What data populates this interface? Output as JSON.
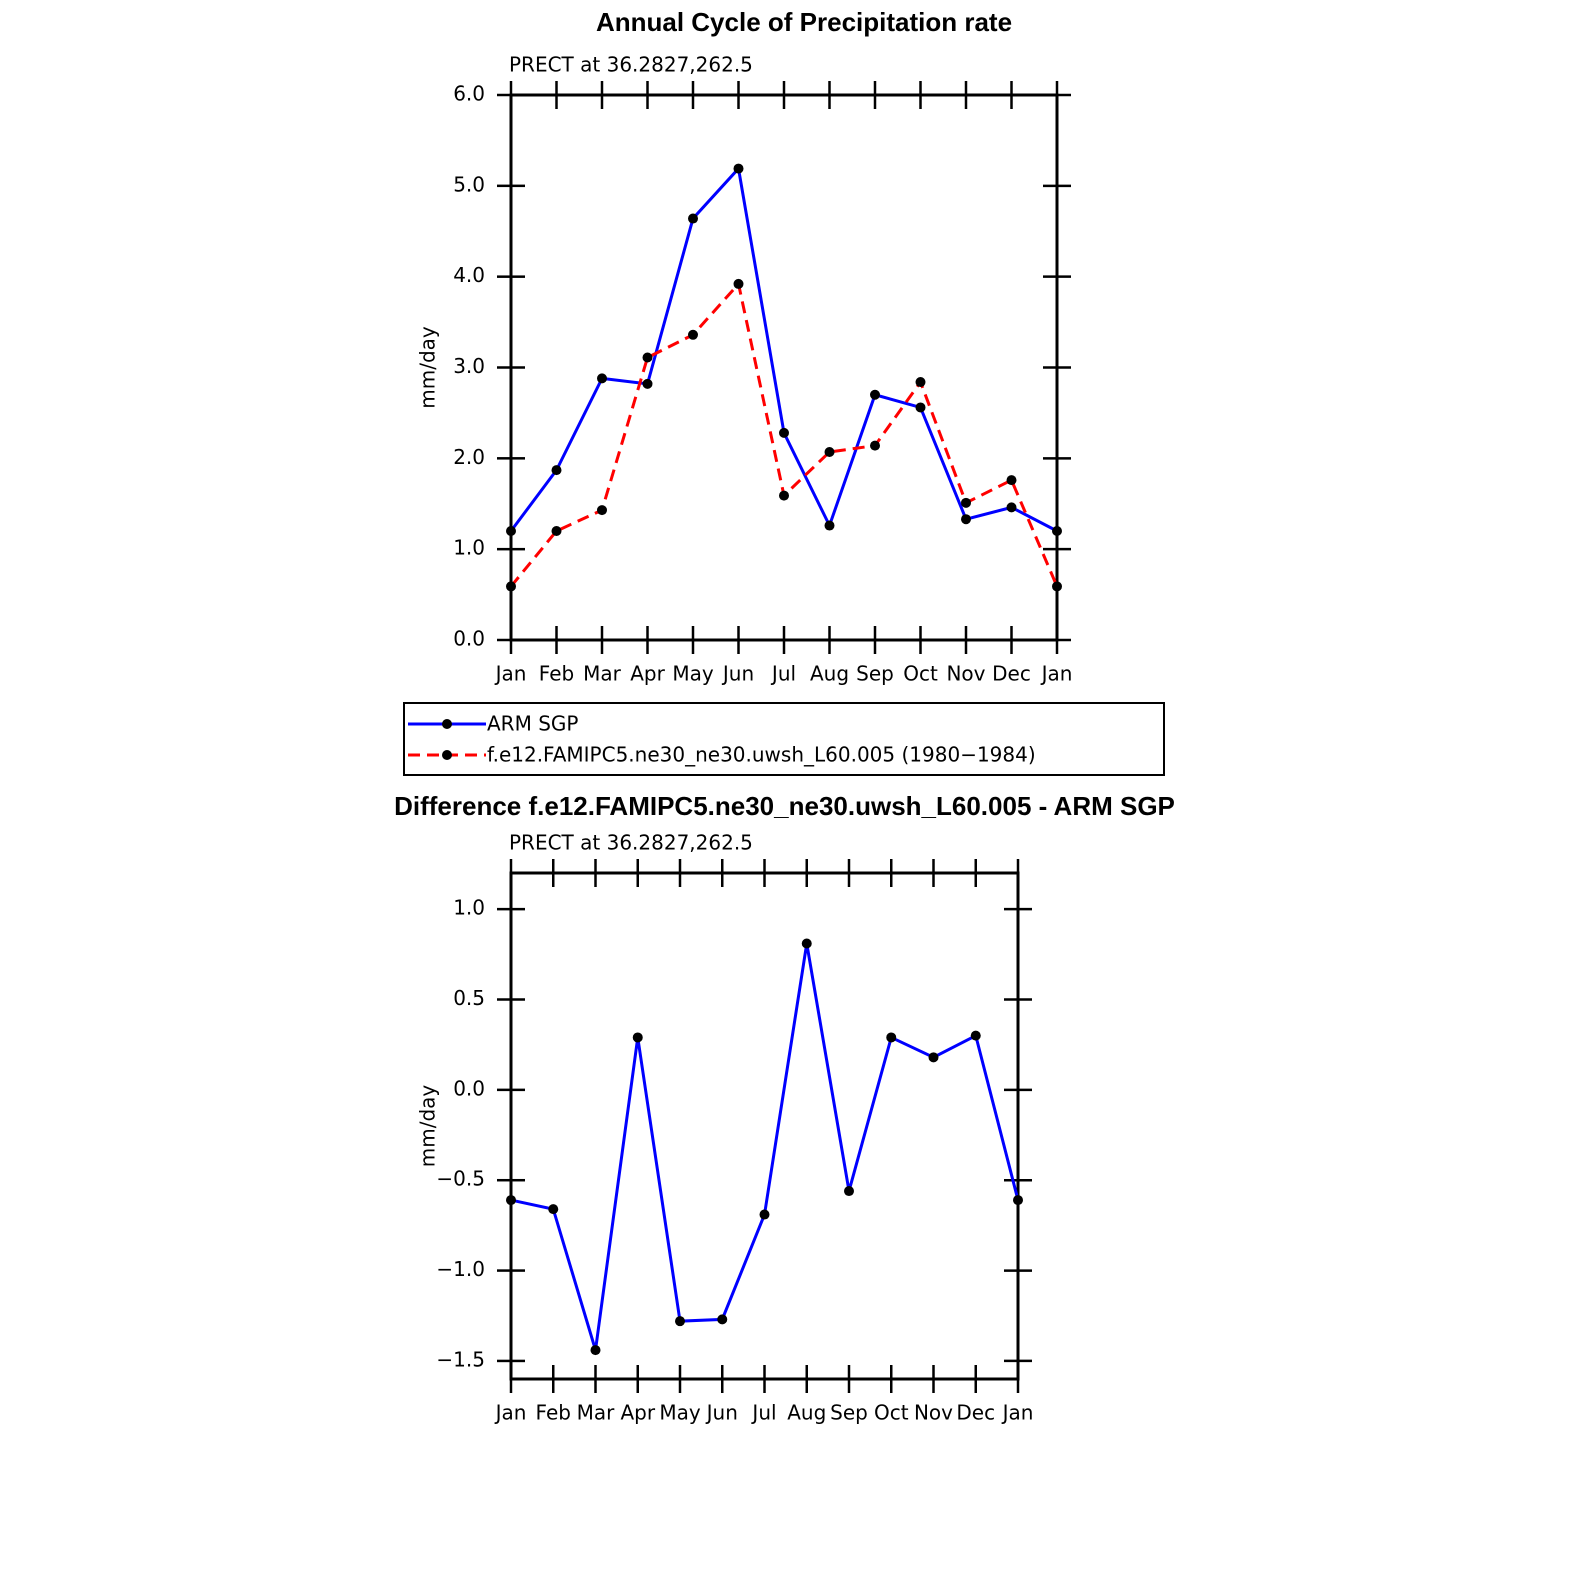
{
  "chart_data": [
    {
      "type": "line",
      "title": "Annual Cycle of Precipitation rate",
      "subtitle": "PRECT at 36.2827,262.5",
      "ylabel": "mm/day",
      "categories": [
        "Jan",
        "Feb",
        "Mar",
        "Apr",
        "May",
        "Jun",
        "Jul",
        "Aug",
        "Sep",
        "Oct",
        "Nov",
        "Dec",
        "Jan"
      ],
      "series": [
        {
          "name": "ARM SGP",
          "color": "#0000ff",
          "line_style": "solid",
          "values": [
            1.2,
            1.87,
            2.88,
            2.82,
            4.64,
            5.19,
            2.28,
            1.26,
            2.7,
            2.56,
            1.33,
            1.46,
            1.2
          ]
        },
        {
          "name": "f.e12.FAMIPC5.ne30_ne30.uwsh_L60.005 (1980−1984)",
          "color": "#ff0000",
          "line_style": "dashed",
          "values": [
            0.59,
            1.2,
            1.43,
            3.11,
            3.36,
            3.92,
            1.59,
            2.07,
            2.14,
            2.84,
            1.51,
            1.76,
            0.59
          ]
        }
      ],
      "ylim": [
        0,
        6
      ],
      "yticks": [
        {
          "value": 0,
          "label": "0.0"
        },
        {
          "value": 1,
          "label": "1.0"
        },
        {
          "value": 2,
          "label": "2.0"
        },
        {
          "value": 3,
          "label": "3.0"
        },
        {
          "value": 4,
          "label": "4.0"
        },
        {
          "value": 5,
          "label": "5.0"
        },
        {
          "value": 6,
          "label": "6.0"
        }
      ],
      "legend": "below",
      "marker_color": "#000000"
    },
    {
      "type": "line",
      "title": "Difference f.e12.FAMIPC5.ne30_ne30.uwsh_L60.005 - ARM SGP",
      "subtitle": "PRECT at 36.2827,262.5",
      "ylabel": "mm/day",
      "categories": [
        "Jan",
        "Feb",
        "Mar",
        "Apr",
        "May",
        "Jun",
        "Jul",
        "Aug",
        "Sep",
        "Oct",
        "Nov",
        "Dec",
        "Jan"
      ],
      "values": [
        -0.61,
        -0.66,
        -1.44,
        0.29,
        -1.28,
        -1.27,
        -0.69,
        0.81,
        -0.56,
        0.29,
        0.18,
        0.3,
        -0.61
      ],
      "color": "#0000ff",
      "ylim": [
        -1.6,
        1.2
      ],
      "yticks": [
        {
          "value": -1.5,
          "label": "−1.5"
        },
        {
          "value": -1,
          "label": "−1.0"
        },
        {
          "value": -0.5,
          "label": "−0.5"
        },
        {
          "value": 0,
          "label": "0.0"
        },
        0.5,
        {
          "value": 1,
          "label": "1.0"
        }
      ],
      "marker_color": "#000000"
    }
  ]
}
